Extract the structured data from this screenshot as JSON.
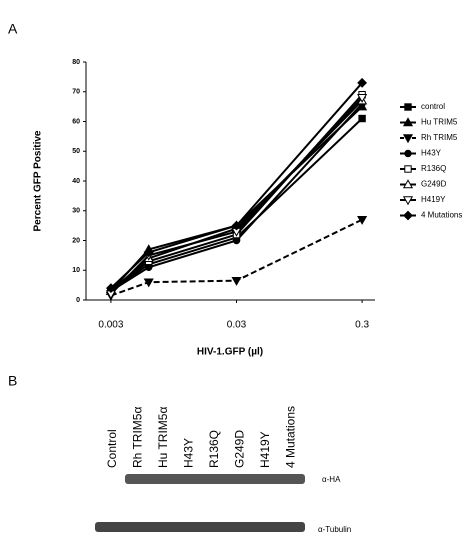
{
  "panels": [
    "A",
    "B"
  ],
  "chart_data": {
    "type": "line",
    "x_label": "HIV-1.GFP (µl)",
    "y_label": "Percent GFP Positive",
    "x": [
      0.003,
      0.006,
      0.03,
      0.3
    ],
    "xlim": [
      0.0019,
      0.38
    ],
    "xticks": [
      0.003,
      0.03,
      0.3
    ],
    "x_log": true,
    "ylim": [
      0,
      80
    ],
    "yticks": [
      0,
      10,
      20,
      30,
      40,
      50,
      60,
      70,
      80
    ],
    "legend": "right",
    "series": [
      {
        "name": "control",
        "color": "#000000",
        "marker": "square",
        "dash": false,
        "values": [
          3,
          12,
          21,
          61
        ]
      },
      {
        "name": "Hu TRIM5",
        "color": "#000000",
        "marker": "triangle",
        "dash": false,
        "values": [
          3,
          17,
          25,
          65
        ]
      },
      {
        "name": "Rh TRIM5",
        "color": "#000000",
        "marker": "triangle-down",
        "dash": true,
        "values": [
          1.5,
          6,
          6.5,
          27
        ]
      },
      {
        "name": "H43Y",
        "color": "#000000",
        "marker": "circle",
        "dash": false,
        "values": [
          3,
          11,
          20,
          66
        ]
      },
      {
        "name": "R136Q",
        "color": "#000000",
        "marker": "square-open",
        "dash": false,
        "values": [
          3,
          13,
          22,
          69
        ]
      },
      {
        "name": "G249D",
        "color": "#000000",
        "marker": "triangle-open",
        "dash": false,
        "values": [
          3,
          14,
          24,
          67
        ]
      },
      {
        "name": "H419Y",
        "color": "#000000",
        "marker": "triangle-down-open",
        "dash": false,
        "values": [
          2,
          15,
          23,
          68
        ]
      },
      {
        "name": "4 Mutations",
        "color": "#000000",
        "marker": "diamond",
        "dash": false,
        "values": [
          4,
          16,
          25,
          73
        ]
      }
    ]
  },
  "blot": {
    "lanes": [
      "Control",
      "Rh TRIM5α",
      "Hu TRIM5α",
      "H43Y",
      "R136Q",
      "G249D",
      "H419Y",
      "4 Mutations"
    ],
    "bands": [
      "α-HA",
      "α-Tubulin"
    ]
  }
}
